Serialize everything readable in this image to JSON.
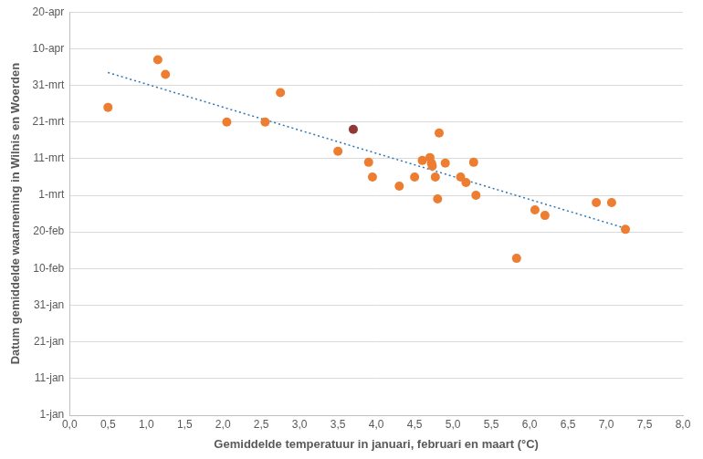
{
  "chart_data": {
    "type": "scatter",
    "x_label": "Gemiddelde temperatuur in januari, februari en maart (°C)",
    "y_label": "Datum gemiddelde waarneming in Wilnis en Woerden",
    "xlim": [
      0,
      8
    ],
    "xticks": [
      {
        "value": 0,
        "label": "0,0"
      },
      {
        "value": 0.5,
        "label": "0,5"
      },
      {
        "value": 1,
        "label": "1,0"
      },
      {
        "value": 1.5,
        "label": "1,5"
      },
      {
        "value": 2,
        "label": "2,0"
      },
      {
        "value": 2.5,
        "label": "2,5"
      },
      {
        "value": 3,
        "label": "3,0"
      },
      {
        "value": 3.5,
        "label": "3,5"
      },
      {
        "value": 4,
        "label": "4,0"
      },
      {
        "value": 4.5,
        "label": "4,5"
      },
      {
        "value": 5,
        "label": "5,0"
      },
      {
        "value": 5.5,
        "label": "5,5"
      },
      {
        "value": 6,
        "label": "6,0"
      },
      {
        "value": 6.5,
        "label": "6,5"
      },
      {
        "value": 7,
        "label": "7,0"
      },
      {
        "value": 7.5,
        "label": "7,5"
      },
      {
        "value": 8,
        "label": "8,0"
      }
    ],
    "ylim": [
      1,
      111
    ],
    "yticks": [
      {
        "value": 1,
        "label": "1-jan"
      },
      {
        "value": 11,
        "label": "11-jan"
      },
      {
        "value": 21,
        "label": "21-jan"
      },
      {
        "value": 31,
        "label": "31-jan"
      },
      {
        "value": 41,
        "label": "10-feb"
      },
      {
        "value": 51,
        "label": "20-feb"
      },
      {
        "value": 61,
        "label": "1-mrt"
      },
      {
        "value": 71,
        "label": "11-mrt"
      },
      {
        "value": 81,
        "label": "21-mrt"
      },
      {
        "value": 91,
        "label": "31-mrt"
      },
      {
        "value": 101,
        "label": "10-apr"
      },
      {
        "value": 111,
        "label": "20-apr"
      }
    ],
    "grid": "y",
    "series": [
      {
        "type": "scatter",
        "marker": "circle",
        "x": [
          0.5,
          1.15,
          1.25,
          2.05,
          2.55,
          2.75,
          3.5,
          3.7,
          3.9,
          3.95,
          4.3,
          4.5,
          4.6,
          4.7,
          4.72,
          4.73,
          4.77,
          4.8,
          4.82,
          4.9,
          5.1,
          5.17,
          5.27,
          5.3,
          5.83,
          6.07,
          6.2,
          6.87,
          7.07,
          7.25
        ],
        "values": [
          85,
          98,
          94,
          81,
          81,
          89,
          73,
          79,
          70,
          66,
          63.5,
          66,
          70.5,
          71.3,
          69.8,
          69,
          66,
          60,
          78,
          69.8,
          66,
          64.5,
          70,
          61,
          43.8,
          57,
          55.5,
          59,
          59,
          51.7
        ],
        "colors": [
          "#ed7d31",
          "#ed7d31",
          "#ed7d31",
          "#ed7d31",
          "#ed7d31",
          "#ed7d31",
          "#ed7d31",
          "#943634",
          "#ed7d31",
          "#ed7d31",
          "#ed7d31",
          "#ed7d31",
          "#ed7d31",
          "#ed7d31",
          "#ed7d31",
          "#ed7d31",
          "#ed7d31",
          "#ed7d31",
          "#ed7d31",
          "#ed7d31",
          "#ed7d31",
          "#ed7d31",
          "#ed7d31",
          "#ed7d31",
          "#ed7d31",
          "#ed7d31",
          "#ed7d31",
          "#ed7d31",
          "#ed7d31",
          "#ed7d31"
        ]
      },
      {
        "type": "line",
        "line_style": "dotted",
        "color": "#2e75b6",
        "x": [
          0.5,
          7.25
        ],
        "values": [
          94.5,
          52
        ]
      }
    ]
  }
}
